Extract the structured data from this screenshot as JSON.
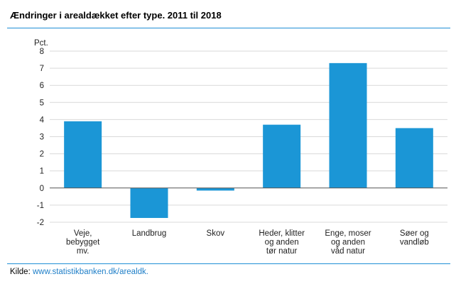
{
  "title": "Ændringer i arealdækket efter type. 2011 til 2018",
  "source": {
    "label": "Kilde:",
    "link": "www.statistikbanken.dk/arealdk."
  },
  "colors": {
    "bar": "#1b96d6",
    "rule": "#1f8fd6",
    "grid": "#d9d9d9"
  },
  "chart_data": {
    "type": "bar",
    "ylabel": "Pct.",
    "ylim": [
      -2,
      8
    ],
    "yticks": [
      -2,
      -1,
      0,
      1,
      2,
      3,
      4,
      5,
      6,
      7,
      8
    ],
    "grid": true,
    "categories": [
      [
        "Veje,",
        "bebygget",
        "mv."
      ],
      [
        "Landbrug"
      ],
      [
        "Skov"
      ],
      [
        "Heder, klitter",
        "og anden",
        "tør natur"
      ],
      [
        "Enge, moser",
        "og anden",
        "våd natur"
      ],
      [
        "Søer og",
        "vandløb"
      ]
    ],
    "values": [
      3.9,
      -1.75,
      -0.15,
      3.7,
      7.3,
      3.5
    ]
  }
}
